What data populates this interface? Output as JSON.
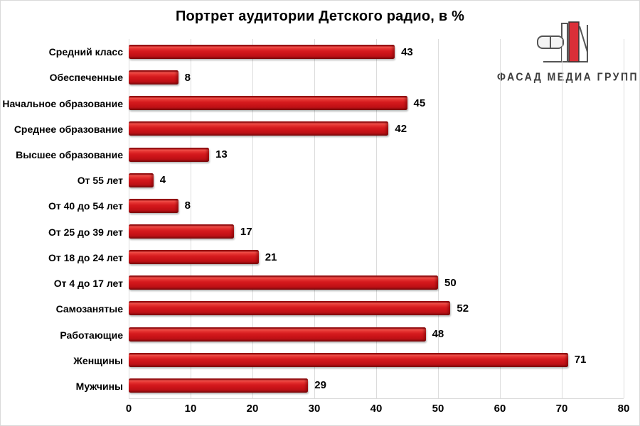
{
  "title": "Портрет аудитории Детского радио, в %",
  "logo": {
    "text": "ФАСАД МЕДИА ГРУПП",
    "icon": "fasad-media-grupp-logo",
    "accent_red": "#da2f38",
    "outline_gray": "#555555"
  },
  "colors": {
    "bar_main": "#cc1417",
    "bar_highlight": "#ee4f49",
    "bar_shadow": "#8e0b0e",
    "gridline": "#dcdcdc",
    "text": "#000000",
    "background": "#ffffff"
  },
  "chart_data": {
    "type": "bar",
    "orientation": "horizontal",
    "title": "Портрет аудитории Детского радио, в %",
    "categories": [
      "Средний класс",
      "Обеспеченные",
      "Начальное образование",
      "Среднее образование",
      "Высшее образование",
      "От 55 лет",
      "От 40 до 54 лет",
      "От 25 до 39 лет",
      "От 18 до 24 лет",
      "От 4 до 17 лет",
      "Самозанятые",
      "Работающие",
      "Женщины",
      "Мужчины"
    ],
    "values": [
      43,
      8,
      45,
      42,
      13,
      4,
      8,
      17,
      21,
      50,
      52,
      48,
      71,
      29
    ],
    "xlim": [
      0,
      80
    ],
    "xticks": [
      0,
      10,
      20,
      30,
      40,
      50,
      60,
      70,
      80
    ],
    "grid": true,
    "legend": false,
    "value_labels": true,
    "xlabel": "",
    "ylabel": ""
  }
}
